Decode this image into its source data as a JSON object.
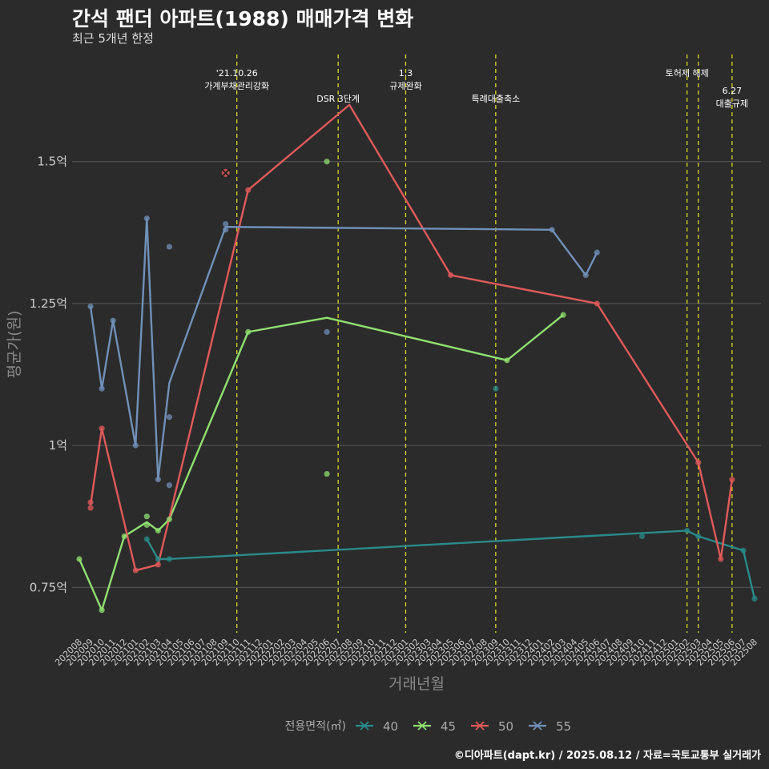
{
  "header": {
    "title": "간석 팬더 아파트(1988) 매매가격 변화",
    "subtitle": "최근 5개년 한정",
    "caption": "©디아파트(dapt.kr) / 2025.08.12 / 자료=국토교통부 실거래가"
  },
  "chart_data": {
    "type": "line",
    "xlabel": "거래년월",
    "ylabel": "평균가(원)",
    "ylim": [
      0.67,
      1.7
    ],
    "yticks": [
      0.75,
      1.0,
      1.25,
      1.5
    ],
    "ytick_labels": [
      "0.75억",
      "1억",
      "1.25억",
      "1.5억"
    ],
    "x_categories": [
      "202008",
      "202009",
      "202010",
      "202011",
      "202012",
      "202101",
      "202102",
      "202103",
      "202104",
      "202105",
      "202106",
      "202107",
      "202108",
      "202109",
      "202110",
      "202111",
      "202112",
      "202201",
      "202202",
      "202203",
      "202204",
      "202205",
      "202206",
      "202207",
      "202208",
      "202209",
      "202210",
      "202211",
      "202212",
      "202301",
      "202302",
      "202303",
      "202304",
      "202305",
      "202306",
      "202307",
      "202308",
      "202309",
      "202310",
      "202311",
      "202312",
      "202401",
      "202402",
      "202403",
      "202404",
      "202405",
      "202406",
      "202407",
      "202408",
      "202409",
      "202410",
      "202411",
      "202412",
      "202501",
      "202502",
      "202503",
      "202504",
      "202505",
      "202506",
      "202507",
      "202508"
    ],
    "events": [
      {
        "month": "202110",
        "label": "'21.10.26\n가계부채관리강화",
        "row": 1
      },
      {
        "month": "202207",
        "label": "DSR 3단계",
        "row": 2
      },
      {
        "month": "202301",
        "label": "1.3\n규제완화",
        "row": 1
      },
      {
        "month": "202309",
        "label": "특례대출축소",
        "row": 2
      },
      {
        "month": "202502",
        "label": "토허제 해제",
        "row": 1
      },
      {
        "month": "202503",
        "label": "",
        "row": 0
      },
      {
        "month": "202506",
        "label": "6.27\n대출규제",
        "row": 2
      }
    ],
    "legend_title": "전용면적(㎡)",
    "series": [
      {
        "name": "40",
        "color": "#2a8a8a",
        "line": [
          [
            "202102",
            0.835
          ],
          [
            "202103",
            0.8
          ],
          [
            "202104",
            0.8
          ],
          [
            "202502",
            0.85
          ],
          [
            "202503",
            0.84
          ],
          [
            "202507",
            0.815
          ],
          [
            "202508",
            0.73
          ]
        ],
        "points": [
          [
            "202102",
            0.835
          ],
          [
            "202103",
            0.8
          ],
          [
            "202104",
            0.8
          ],
          [
            "202309",
            1.1
          ],
          [
            "202410",
            0.84
          ],
          [
            "202502",
            0.85
          ],
          [
            "202503",
            0.84
          ],
          [
            "202507",
            0.815
          ],
          [
            "202508",
            0.73
          ]
        ],
        "cross": []
      },
      {
        "name": "45",
        "color": "#90e070",
        "line": [
          [
            "202008",
            0.8
          ],
          [
            "202010",
            0.71
          ],
          [
            "202012",
            0.84
          ],
          [
            "202102",
            0.865
          ],
          [
            "202103",
            0.85
          ],
          [
            "202104",
            0.87
          ],
          [
            "202111",
            1.2
          ],
          [
            "202206",
            1.225
          ],
          [
            "202310",
            1.15
          ],
          [
            "202403",
            1.23
          ]
        ],
        "points": [
          [
            "202008",
            0.8
          ],
          [
            "202010",
            0.71
          ],
          [
            "202012",
            0.84
          ],
          [
            "202102",
            0.875
          ],
          [
            "202102",
            0.86
          ],
          [
            "202103",
            0.85
          ],
          [
            "202104",
            0.87
          ],
          [
            "202111",
            1.2
          ],
          [
            "202206",
            0.95
          ],
          [
            "202206",
            1.5
          ],
          [
            "202310",
            1.15
          ],
          [
            "202403",
            1.23
          ]
        ],
        "cross": []
      },
      {
        "name": "50",
        "color": "#e05a5a",
        "line": [
          [
            "202009",
            0.895
          ],
          [
            "202010",
            1.03
          ],
          [
            "202101",
            0.78
          ],
          [
            "202103",
            0.79
          ],
          [
            "202111",
            1.45
          ],
          [
            "202208",
            1.6
          ],
          [
            "202305",
            1.3
          ],
          [
            "202406",
            1.25
          ],
          [
            "202503",
            0.97
          ],
          [
            "202505",
            0.8
          ],
          [
            "202506",
            0.94
          ]
        ],
        "points": [
          [
            "202009",
            0.89
          ],
          [
            "202009",
            0.9
          ],
          [
            "202010",
            1.03
          ],
          [
            "202101",
            0.78
          ],
          [
            "202103",
            0.79
          ],
          [
            "202111",
            1.45
          ],
          [
            "202305",
            1.3
          ],
          [
            "202406",
            1.25
          ],
          [
            "202503",
            0.97
          ],
          [
            "202505",
            0.8
          ],
          [
            "202506",
            0.94
          ]
        ],
        "cross": [
          [
            "202109",
            1.48
          ]
        ]
      },
      {
        "name": "55",
        "color": "#7090b8",
        "line": [
          [
            "202009",
            1.245
          ],
          [
            "202010",
            1.1
          ],
          [
            "202011",
            1.22
          ],
          [
            "202101",
            1.0
          ],
          [
            "202102",
            1.4
          ],
          [
            "202103",
            0.94
          ],
          [
            "202104",
            1.11
          ],
          [
            "202109",
            1.385
          ],
          [
            "202402",
            1.38
          ],
          [
            "202405",
            1.3
          ],
          [
            "202406",
            1.34
          ]
        ],
        "points": [
          [
            "202009",
            1.245
          ],
          [
            "202010",
            1.1
          ],
          [
            "202011",
            1.22
          ],
          [
            "202101",
            1.0
          ],
          [
            "202102",
            1.4
          ],
          [
            "202103",
            0.94
          ],
          [
            "202104",
            1.35
          ],
          [
            "202104",
            1.05
          ],
          [
            "202104",
            0.93
          ],
          [
            "202109",
            1.39
          ],
          [
            "202109",
            1.38
          ],
          [
            "202206",
            1.2
          ],
          [
            "202402",
            1.38
          ],
          [
            "202405",
            1.3
          ],
          [
            "202406",
            1.34
          ]
        ],
        "cross": []
      }
    ]
  }
}
